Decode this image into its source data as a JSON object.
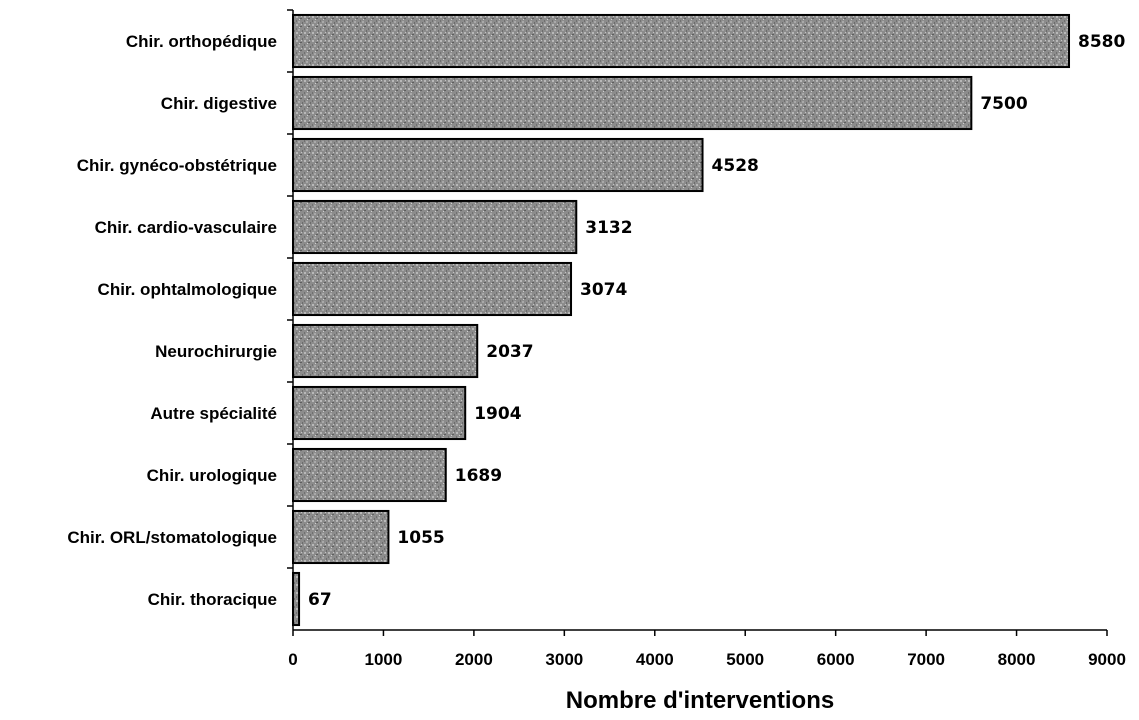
{
  "chart_data": {
    "type": "bar",
    "orientation": "horizontal",
    "title": "",
    "xlabel": "Nombre d'interventions",
    "ylabel": "",
    "xlim": [
      0,
      9000
    ],
    "xticks": [
      0,
      1000,
      2000,
      3000,
      4000,
      5000,
      6000,
      7000,
      8000,
      9000
    ],
    "grid": false,
    "legend": "none",
    "categories": [
      "Chir. orthopédique",
      "Chir. digestive",
      "Chir. gynéco-obstétrique",
      "Chir. cardio-vasculaire",
      "Chir. ophtalmologique",
      "Neurochirurgie",
      "Autre spécialité",
      "Chir. urologique",
      "Chir. ORL/stomatologique",
      "Chir. thoracique"
    ],
    "values": [
      8580,
      7500,
      4528,
      3132,
      3074,
      2037,
      1904,
      1689,
      1055,
      67
    ],
    "bar_color": "#8c8c8c",
    "bar_pattern": "gray textured"
  }
}
